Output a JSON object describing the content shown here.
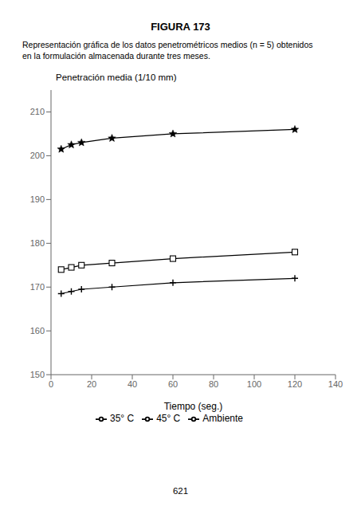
{
  "chart_data": {
    "type": "line",
    "title": "FIGURA 173",
    "subtitle": [
      "Representación gráfica de los datos penetrométricos medios (n = 5) obtenidos",
      "en la formulación almacenada durante tres meses."
    ],
    "annotations": [
      "621"
    ],
    "ylabel": "Penetración media (1/10 mm)",
    "xlabel": "Tiempo (seg.)",
    "xlim": [
      0,
      140
    ],
    "ylim": [
      150,
      215
    ],
    "xticks": [
      0,
      20,
      40,
      60,
      80,
      100,
      120,
      140
    ],
    "yticks": [
      150,
      160,
      170,
      180,
      190,
      200,
      210
    ],
    "x": [
      5,
      10,
      15,
      30,
      60,
      120
    ],
    "series": [
      {
        "name": "Ambiente",
        "color": "#000000",
        "marker": "plus",
        "values": [
          168.5,
          169.0,
          169.5,
          170.0,
          171.0,
          172.0
        ]
      },
      {
        "name": "35° C",
        "color": "#000000",
        "marker": "square",
        "values": [
          174.0,
          174.5,
          175.0,
          175.5,
          176.5,
          178.0
        ]
      },
      {
        "name": "45° C",
        "color": "#000000",
        "marker": "star",
        "values": [
          201.5,
          202.5,
          203.0,
          204.0,
          205.0,
          206.0
        ]
      }
    ],
    "grid": false,
    "legend": "bottom"
  }
}
